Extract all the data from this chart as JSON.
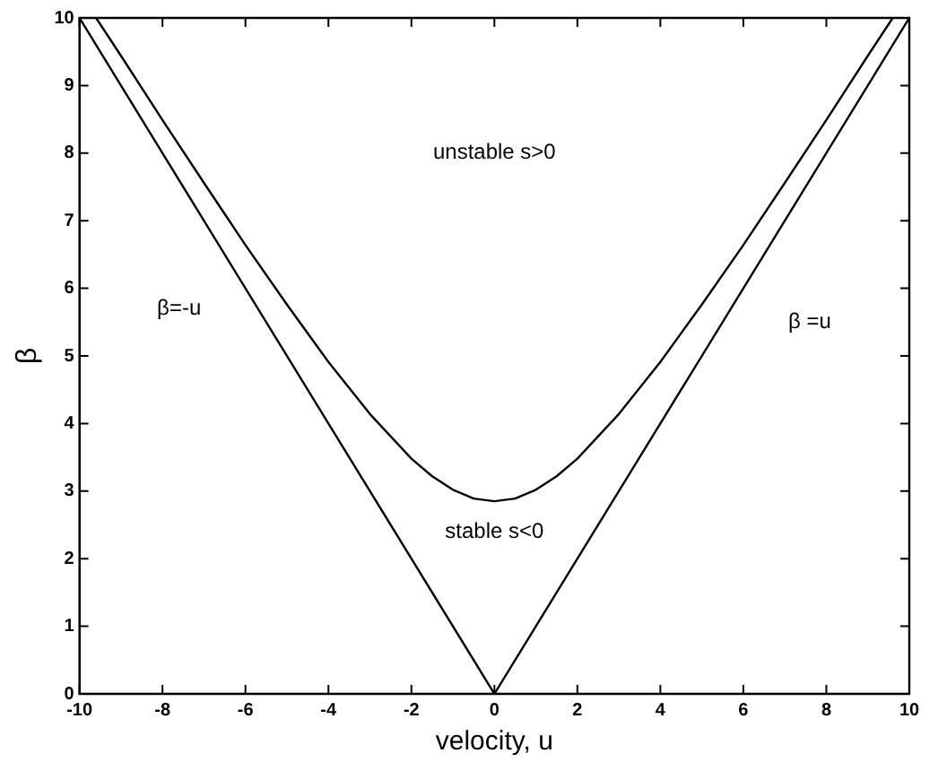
{
  "chart_data": {
    "type": "line",
    "xlabel": "velocity, u",
    "ylabel": "β",
    "xlim": [
      -10,
      10
    ],
    "xticks": [
      -10,
      -8,
      -6,
      -4,
      -2,
      0,
      2,
      4,
      6,
      8,
      10
    ],
    "ylim": [
      0,
      10
    ],
    "yticks": [
      0,
      1,
      2,
      3,
      4,
      5,
      6,
      7,
      8,
      9,
      10
    ],
    "grid": false,
    "legend": false,
    "marker": "none",
    "line_style": "solid",
    "series": [
      {
        "color": "#000000",
        "x": [
          -10,
          0,
          10
        ],
        "values": [
          10,
          0,
          10
        ]
      },
      {
        "color": "#000000",
        "x": [
          -9.6,
          -9,
          -8,
          -7,
          -6,
          -5,
          -4,
          -3,
          -2,
          -1.5,
          -1,
          -0.5,
          0,
          0.5,
          1,
          1.5,
          2,
          3,
          4,
          5,
          6,
          7,
          8,
          9,
          9.6
        ],
        "values": [
          10,
          9.44,
          8.49,
          7.56,
          6.64,
          5.76,
          4.91,
          4.14,
          3.48,
          3.22,
          3.02,
          2.89,
          2.85,
          2.89,
          3.02,
          3.22,
          3.48,
          4.14,
          4.91,
          5.76,
          6.64,
          7.56,
          8.49,
          9.44,
          10
        ]
      }
    ],
    "annotations": [
      "unstable s>0",
      "stable s<0",
      "β=-u",
      "β =u"
    ]
  }
}
